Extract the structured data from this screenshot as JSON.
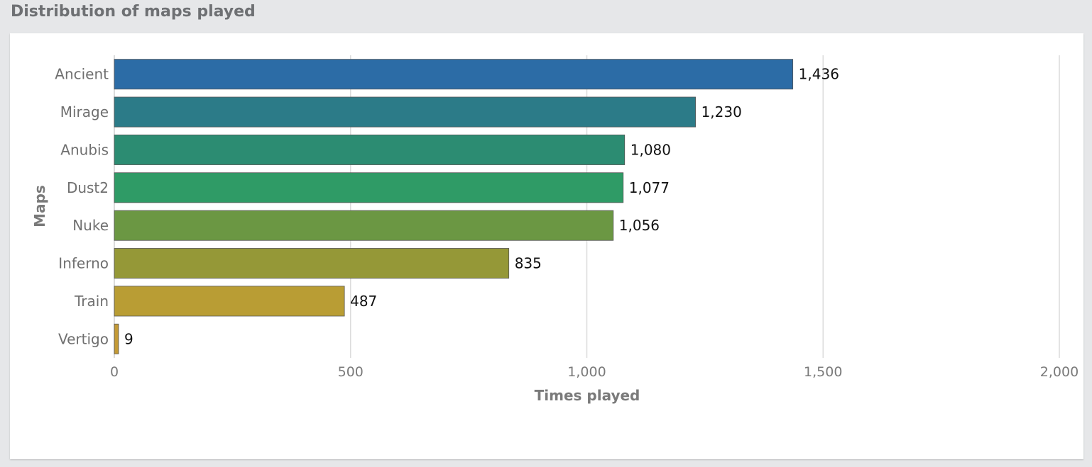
{
  "widget": {
    "title": "Distribution of maps played"
  },
  "chart_data": {
    "type": "bar",
    "orientation": "horizontal",
    "categories": [
      "Ancient",
      "Mirage",
      "Anubis",
      "Dust2",
      "Nuke",
      "Inferno",
      "Train",
      "Vertigo"
    ],
    "values": [
      1436,
      1230,
      1080,
      1077,
      1056,
      835,
      487,
      9
    ],
    "data_labels": [
      "1,436",
      "1,230",
      "1,080",
      "1,077",
      "1,056",
      "835",
      "487",
      "9"
    ],
    "colors": [
      "#2c6ca6",
      "#2c7b88",
      "#2c8c72",
      "#2f9b66",
      "#6b9743",
      "#959837",
      "#b99d34",
      "#c49a35"
    ],
    "title": "",
    "xlabel": "Times played",
    "ylabel": "Maps",
    "xlim": [
      0,
      2000
    ],
    "x_ticks": [
      0,
      500,
      1000,
      1500,
      2000
    ],
    "x_tick_labels": [
      "0",
      "500",
      "1,000",
      "1,500",
      "2,000"
    ],
    "grid": true,
    "bar_border_color": "#555555"
  }
}
